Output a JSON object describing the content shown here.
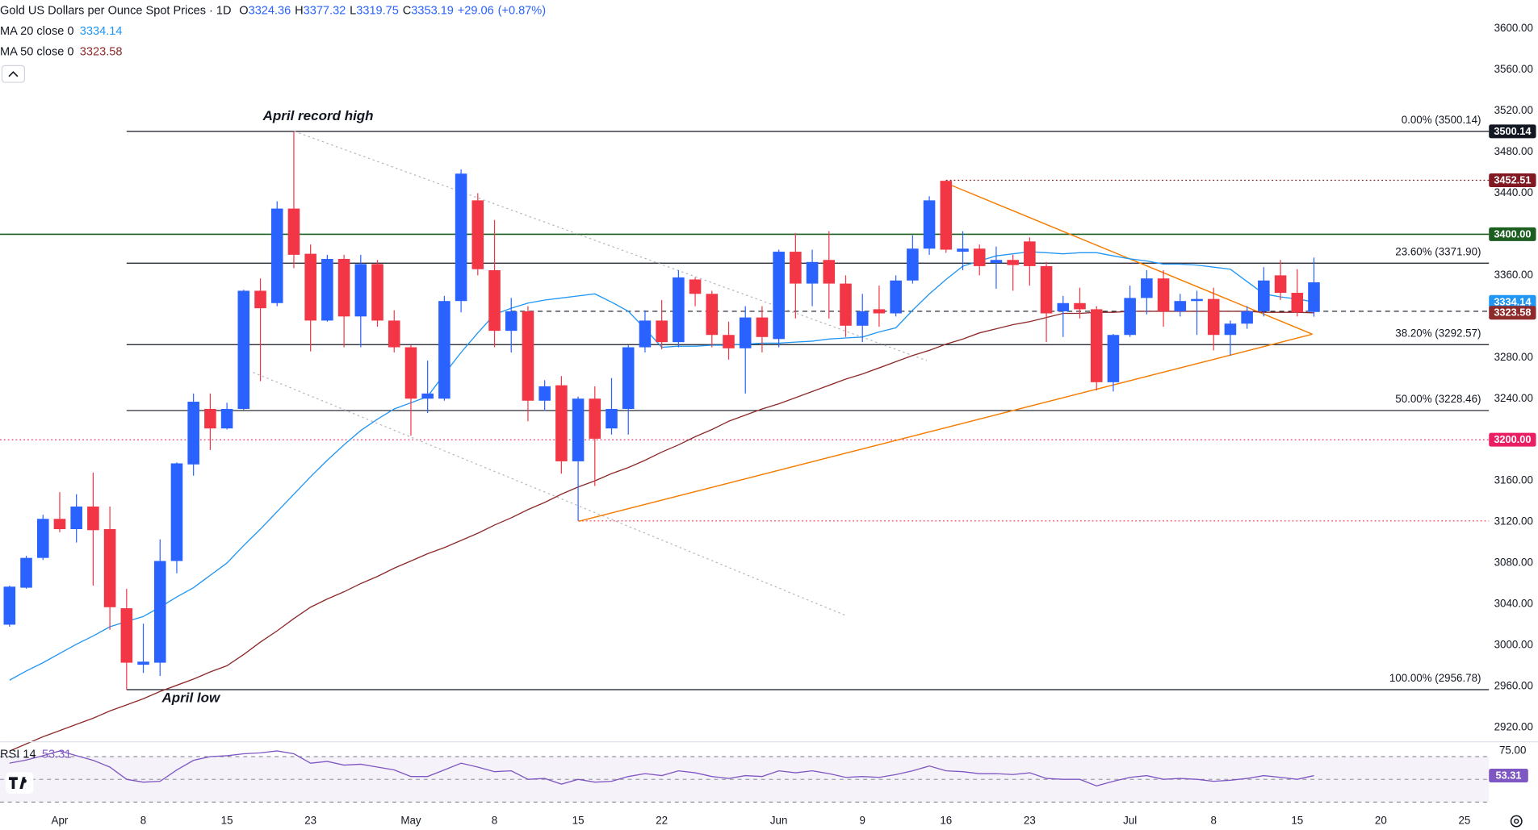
{
  "chart_data": {
    "type": "candlestick",
    "title": "Gold US Dollars per Ounce Spot Prices · 1D",
    "ohlc_labels": [
      "O",
      "H",
      "L",
      "C"
    ],
    "change": "+29.06",
    "change_pct": "(+0.87%)",
    "up_color": "#2962ff",
    "down_color": "#f23645",
    "categories": [
      null,
      null,
      null,
      "Apr",
      null,
      null,
      null,
      null,
      "8",
      null,
      null,
      null,
      null,
      "15",
      null,
      null,
      null,
      null,
      "23",
      null,
      null,
      null,
      null,
      null,
      "May",
      null,
      null,
      null,
      null,
      "8",
      null,
      null,
      null,
      null,
      "15",
      null,
      null,
      null,
      null,
      "22",
      null,
      null,
      null,
      null,
      null,
      null,
      "Jun",
      null,
      null,
      null,
      null,
      "9",
      null,
      null,
      null,
      null,
      "16",
      null,
      null,
      null,
      null,
      "23",
      null,
      null,
      null,
      null,
      null,
      "Jul",
      null,
      null,
      null,
      null,
      "8",
      null,
      null,
      null,
      null,
      "15",
      null,
      null,
      null,
      null,
      "20",
      null,
      null,
      null,
      null,
      "25"
    ],
    "open": [
      3020,
      3056,
      3085,
      3123,
      3113,
      3135,
      3113,
      3036,
      2981,
      2983,
      3082,
      3176,
      3230,
      3211,
      3230,
      3345,
      3333,
      3425,
      3381,
      3316,
      3376,
      3320,
      3371,
      3316,
      3290,
      3240,
      3240,
      3335,
      3433,
      3365,
      3306,
      3325,
      3238,
      3253,
      3179,
      3240,
      3211,
      3230,
      3290,
      3316,
      3295,
      3356,
      3342,
      3302,
      3289,
      3319,
      3298,
      3383,
      3352,
      3375,
      3352,
      3311,
      3327,
      3323,
      3355,
      3386,
      3452,
      3383,
      3386,
      3372,
      3375,
      3393,
      3369,
      3325,
      3333,
      3327,
      3256,
      3302,
      3338,
      3357,
      3325,
      3335,
      3337,
      3302,
      3313,
      3325,
      3360,
      3343,
      3324.36,
      null,
      null,
      null,
      null,
      null,
      null,
      null,
      null,
      null
    ],
    "high": [
      3058,
      3087,
      3127,
      3149,
      3147,
      3168,
      3135,
      3055,
      3021,
      3103,
      3178,
      3245,
      3245,
      3236,
      3346,
      3357,
      3432,
      3500.14,
      3390,
      3380,
      3380,
      3380,
      3375,
      3326,
      3292,
      3277,
      3340,
      3463,
      3440,
      3414,
      3338,
      3330,
      3258,
      3262,
      3242,
      3252,
      3260,
      3292,
      3326,
      3336,
      3365,
      3358,
      3345,
      3315,
      3330,
      3330,
      3385,
      3401,
      3385,
      3403,
      3360,
      3342,
      3350,
      3360,
      3399,
      3437,
      3452.51,
      3403,
      3390,
      3388,
      3380,
      3397,
      3373,
      3340,
      3348,
      3330,
      3303,
      3350,
      3365,
      3365,
      3342,
      3345,
      3348,
      3316,
      3330,
      3368,
      3375,
      3366,
      3377.32,
      null,
      null,
      null,
      null,
      null,
      null,
      null,
      null,
      null
    ],
    "low": [
      3018,
      3055,
      3083,
      3110,
      3100,
      3058,
      3015,
      2956.78,
      2973,
      2970,
      3070,
      3165,
      3190,
      3210,
      3229,
      3257,
      3330,
      3367,
      3286,
      3315,
      3290,
      3290,
      3310,
      3285,
      3204,
      3226,
      3238,
      3324,
      3360,
      3290,
      3285,
      3218,
      3228,
      3167,
      3121,
      3155,
      3205,
      3205,
      3285,
      3288,
      3290,
      3330,
      3290,
      3278,
      3245,
      3285,
      3290,
      3318,
      3330,
      3318,
      3300,
      3295,
      3310,
      3320,
      3352,
      3380,
      3382,
      3365,
      3360,
      3347,
      3345,
      3350,
      3295,
      3300,
      3318,
      3248,
      3247,
      3300,
      3322,
      3310,
      3320,
      3302,
      3287,
      3282,
      3308,
      3320,
      3336,
      3320,
      3319.75,
      null,
      null,
      null,
      null,
      null,
      null,
      null,
      null,
      null
    ],
    "close": [
      3057,
      3085,
      3123,
      3113,
      3135,
      3112,
      3037,
      2983,
      2984,
      3082,
      3177,
      3237,
      3211,
      3230,
      3345,
      3328,
      3425,
      3380,
      3316,
      3376,
      3320,
      3371,
      3316,
      3290,
      3240,
      3245,
      3335,
      3459,
      3366,
      3306,
      3325,
      3238,
      3252,
      3179,
      3240,
      3201,
      3230,
      3290,
      3316,
      3295,
      3358,
      3342,
      3302,
      3289,
      3319,
      3300,
      3383,
      3352,
      3373,
      3352,
      3311,
      3325,
      3323,
      3355,
      3386,
      3433,
      3385,
      3386,
      3369,
      3375,
      3370,
      3369,
      3323,
      3333,
      3327,
      3256,
      3302,
      3338,
      3357,
      3325,
      3335,
      3337,
      3302,
      3313,
      3325,
      3355,
      3343,
      3324,
      3353.19,
      null,
      null,
      null,
      null,
      null,
      null,
      null,
      null,
      null
    ],
    "overlays": [
      {
        "name": "MA 20 close 0",
        "color": "#2196f3",
        "values": [
          2966,
          2975,
          2983,
          2992,
          3001,
          3009,
          3018,
          3023,
          3028,
          3037,
          3047,
          3056,
          3068,
          3080,
          3097,
          3113,
          3130,
          3147,
          3164,
          3180,
          3195,
          3209,
          3220,
          3230,
          3236,
          3242,
          3264,
          3285,
          3304,
          3322,
          3328,
          3333,
          3336,
          3338,
          3340,
          3342,
          3334,
          3325,
          3308,
          3290,
          3291,
          3291,
          3292,
          3292,
          3293,
          3294,
          3294,
          3295,
          3296,
          3298,
          3299,
          3300,
          3305,
          3309,
          3326,
          3342,
          3356,
          3369,
          3374,
          3379,
          3381,
          3383,
          3382,
          3381,
          3382,
          3382,
          3379,
          3376,
          3374,
          3371,
          3371,
          3370,
          3368,
          3366,
          3354,
          3342,
          3339,
          3337,
          3334.14,
          null,
          null,
          null,
          null,
          null,
          null,
          null,
          null,
          null
        ]
      },
      {
        "name": "MA 50 close 0",
        "color": "#8e2a2a",
        "values": [
          2897,
          2904,
          2911,
          2917,
          2923,
          2929,
          2936,
          2942,
          2948,
          2955,
          2961,
          2967,
          2974,
          2980,
          2991,
          3003,
          3014,
          3026,
          3037,
          3045,
          3052,
          3060,
          3067,
          3075,
          3082,
          3089,
          3095,
          3102,
          3109,
          3117,
          3124,
          3132,
          3139,
          3147,
          3154,
          3160,
          3167,
          3173,
          3180,
          3188,
          3195,
          3203,
          3210,
          3218,
          3224,
          3230,
          3235,
          3241,
          3247,
          3253,
          3259,
          3264,
          3270,
          3276,
          3282,
          3287,
          3293,
          3298,
          3304,
          3308,
          3312,
          3315,
          3319,
          3323,
          3323,
          3324,
          3324,
          3325,
          3325,
          3325,
          3325,
          3325,
          3325,
          3325,
          3325,
          3324,
          3324,
          3324,
          3323.58,
          null,
          null,
          null,
          null,
          null,
          null,
          null,
          null,
          null
        ]
      }
    ],
    "ylim": [
      2906,
      3628
    ],
    "yticks": [
      {
        "value": 2920,
        "label": "2920.00"
      },
      {
        "value": 2960,
        "label": "2960.00"
      },
      {
        "value": 3000,
        "label": "3000.00"
      },
      {
        "value": 3040,
        "label": "3040.00"
      },
      {
        "value": 3080,
        "label": "3080.00"
      },
      {
        "value": 3120,
        "label": "3120.00"
      },
      {
        "value": 3160,
        "label": "3160.00"
      },
      {
        "value": 3200,
        "label": "3200.00"
      },
      {
        "value": 3240,
        "label": "3240.00"
      },
      {
        "value": 3280,
        "label": "3280.00"
      },
      {
        "value": 3320,
        "label": "3320.00"
      },
      {
        "value": 3360,
        "label": "3360.00"
      },
      {
        "value": 3400,
        "label": "3400.00"
      },
      {
        "value": 3440,
        "label": "3440.00"
      },
      {
        "value": 3480,
        "label": "3480.00"
      },
      {
        "value": 3520,
        "label": "3520.00"
      },
      {
        "value": 3560,
        "label": "3560.00"
      },
      {
        "value": 3600,
        "label": "3600.00"
      }
    ],
    "fib": [
      {
        "value": 3500.14,
        "label": "0.00% (3500.14)"
      },
      {
        "value": 3371.9,
        "label": "23.60% (3371.90)"
      },
      {
        "value": 3292.57,
        "label": "38.20% (3292.57)"
      },
      {
        "value": 3228.46,
        "label": "50.00% (3228.46)"
      },
      {
        "value": 2956.78,
        "label": "100.00% (2956.78)"
      }
    ],
    "levels": [
      {
        "value": 3500.14,
        "color": "#131722",
        "style": "none"
      },
      {
        "value": 3452.51,
        "color": "#801922",
        "style": "dotted"
      },
      {
        "value": 3400,
        "label": "3400.00",
        "color": "#1b5e20",
        "style": "solid"
      },
      {
        "value": 3200,
        "label": "3200.00",
        "color": "#e91e63",
        "style": "dotted"
      }
    ],
    "guides": [
      {
        "value": 3325,
        "color": "#131722",
        "style": "dashed"
      },
      {
        "value": 3121,
        "color": "#f23645",
        "style": "dotted"
      }
    ],
    "annotations": [
      "April record high",
      "April low"
    ],
    "rsi": {
      "name": "RSI 14",
      "color": "#7e57c2",
      "ylim": [
        27,
        83
      ],
      "yticks": [
        {
          "value": 75,
          "label": "75.00"
        }
      ],
      "levels": [
        70,
        50,
        30
      ],
      "values": [
        64.2,
        67,
        70.8,
        75,
        70.8,
        66.7,
        60.8,
        50,
        47.5,
        48.3,
        58.3,
        66.7,
        70,
        70.8,
        72.5,
        73.3,
        75,
        72.5,
        64.2,
        65.8,
        62.5,
        63.3,
        60.8,
        58.3,
        52.5,
        52.5,
        58.3,
        64.2,
        60.8,
        56.7,
        57.5,
        50,
        50.8,
        45.8,
        50,
        47.5,
        48.3,
        52.5,
        55,
        53.3,
        57.5,
        55.8,
        52.5,
        50.8,
        53.3,
        52.5,
        57.5,
        55.8,
        57.5,
        55,
        51.7,
        52.5,
        51.7,
        54.2,
        57.5,
        61.7,
        57.5,
        56.7,
        55,
        55,
        54.2,
        55.8,
        50.8,
        50,
        50,
        44.2,
        48.3,
        51.7,
        53.3,
        50,
        50.8,
        50,
        48.3,
        49.2,
        50.8,
        53.3,
        51.7,
        50,
        53.31,
        null,
        null,
        null,
        null,
        null,
        null,
        null,
        null,
        null
      ]
    }
  }
}
